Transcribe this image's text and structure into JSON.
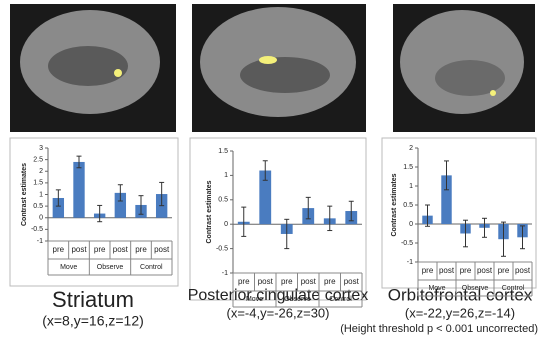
{
  "chart_data": [
    {
      "type": "bar",
      "title": "Striatum",
      "subtitle": "(x=8,y=16,z=12)",
      "y_label": "Contrast estimates",
      "categories": [
        "pre",
        "post",
        "pre",
        "post",
        "pre",
        "post"
      ],
      "groups": [
        "Move",
        "Observe",
        "Control"
      ],
      "values": [
        0.85,
        2.4,
        0.18,
        1.07,
        0.55,
        1.02
      ],
      "errors": [
        0.35,
        0.25,
        0.35,
        0.35,
        0.4,
        0.5
      ],
      "color": "#4a7cc0",
      "ylim": [
        -1,
        3
      ],
      "yticks": [
        -1,
        -0.5,
        0,
        0.5,
        1,
        1.5,
        2,
        2.5,
        3
      ]
    },
    {
      "type": "bar",
      "title": "Posterior cingulate cortex",
      "subtitle": "(x=-4,y=-26,z=30)",
      "y_label": "Contrast estimates",
      "categories": [
        "pre",
        "post",
        "pre",
        "post",
        "pre",
        "post"
      ],
      "groups": [
        "Move",
        "Observe",
        "Control"
      ],
      "values": [
        0.05,
        1.1,
        -0.2,
        0.33,
        0.12,
        0.27
      ],
      "errors": [
        0.3,
        0.2,
        0.3,
        0.22,
        0.25,
        0.2
      ],
      "color": "#4a7cc0",
      "ylim": [
        -1,
        1.5
      ],
      "yticks": [
        -1,
        -0.5,
        0,
        0.5,
        1,
        1.5
      ]
    },
    {
      "type": "bar",
      "title": "Orbitofrontal cortex",
      "subtitle": "(x=-22,y=26,z=-14)",
      "y_label": "Contrast estimates",
      "categories": [
        "pre",
        "post",
        "pre",
        "post",
        "pre",
        "post"
      ],
      "groups": [
        "Move",
        "Observe",
        "Control"
      ],
      "values": [
        0.22,
        1.28,
        -0.25,
        -0.1,
        -0.4,
        -0.35
      ],
      "errors": [
        0.28,
        0.38,
        0.35,
        0.25,
        0.45,
        0.3
      ],
      "color": "#4a7cc0",
      "ylim": [
        -1,
        2
      ],
      "yticks": [
        -1,
        -0.5,
        0,
        0.5,
        1,
        1.5,
        2
      ]
    }
  ],
  "footnote": "(Height threshold p < 0.001 uncorrected)"
}
